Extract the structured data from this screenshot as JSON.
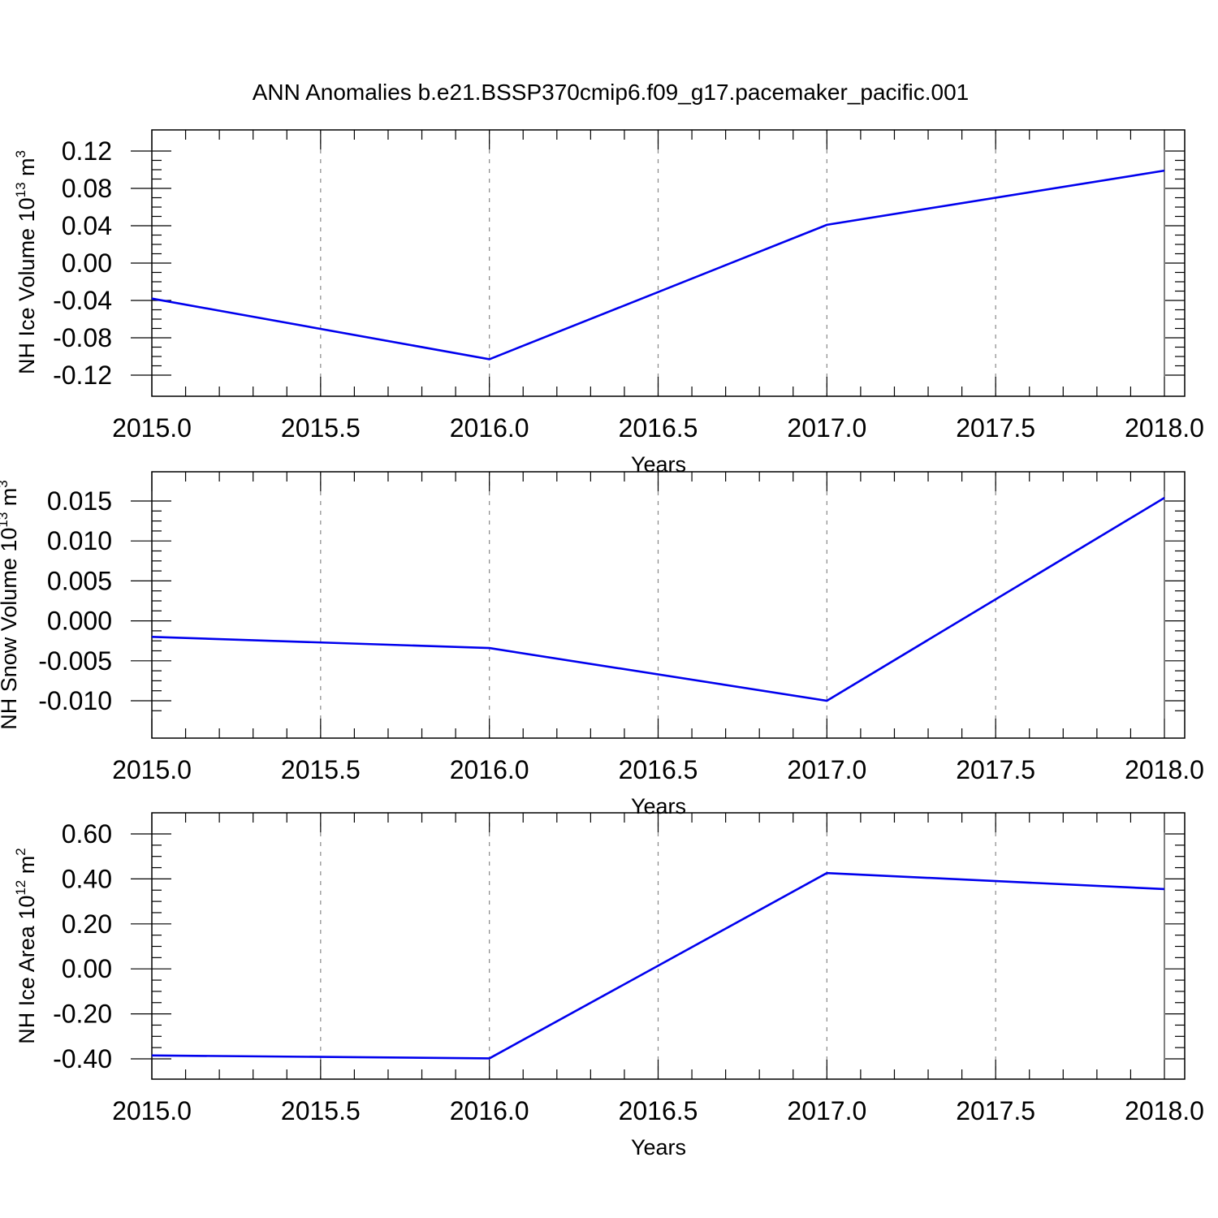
{
  "figure": {
    "title": "ANN Anomalies b.e21.BSSP370cmip6.f09_g17.pacemaker_pacific.001"
  },
  "colors": {
    "series_line": "#0000ee",
    "frame": "#000000",
    "gridline": "#888888",
    "background": "#ffffff"
  },
  "chart_data": [
    {
      "type": "line",
      "ylabel": {
        "prefix": "NH Ice Volume 10",
        "exponent": "13",
        "unit": " m",
        "unit_exponent": "3"
      },
      "xlabel": "Years",
      "xlim": [
        2015.0,
        2018.0
      ],
      "ylim": [
        -0.12,
        0.12
      ],
      "xticks": [
        2015.0,
        2015.5,
        2016.0,
        2016.5,
        2017.0,
        2017.5,
        2018.0
      ],
      "xtick_labels": [
        "2015.0",
        "2015.5",
        "2016.0",
        "2016.5",
        "2017.0",
        "2017.5",
        "2018.0"
      ],
      "yticks": [
        -0.12,
        -0.08,
        -0.04,
        0.0,
        0.04,
        0.08,
        0.12
      ],
      "ytick_labels": [
        "-0.12",
        "-0.08",
        "-0.04",
        "0.00",
        "0.04",
        "0.08",
        "0.12"
      ],
      "ytop_frame": 0.12,
      "ybottom_frame": -0.12,
      "grid": "vertical dashed",
      "series": [
        {
          "x": [
            2015.0,
            2016.0,
            2017.0,
            2018.0
          ],
          "values": [
            -0.038,
            -0.103,
            0.041,
            0.099
          ]
        }
      ]
    },
    {
      "type": "line",
      "ylabel": {
        "prefix": "NH Snow Volume 10",
        "exponent": "13",
        "unit": " m",
        "unit_exponent": "3"
      },
      "xlabel": "Years",
      "xlim": [
        2015.0,
        2018.0
      ],
      "ylim": [
        -0.012,
        0.016
      ],
      "xticks": [
        2015.0,
        2015.5,
        2016.0,
        2016.5,
        2017.0,
        2017.5,
        2018.0
      ],
      "xtick_labels": [
        "2015.0",
        "2015.5",
        "2016.0",
        "2016.5",
        "2017.0",
        "2017.5",
        "2018.0"
      ],
      "yticks": [
        -0.01,
        -0.005,
        0.0,
        0.005,
        0.01,
        0.015
      ],
      "ytick_labels": [
        "-0.010",
        "-0.005",
        "0.000",
        "0.005",
        "0.010",
        "0.015"
      ],
      "grid": "vertical dashed",
      "series": [
        {
          "x": [
            2015.0,
            2016.0,
            2017.0,
            2018.0
          ],
          "values": [
            -0.002,
            -0.0034,
            -0.01,
            0.0154
          ]
        }
      ]
    },
    {
      "type": "line",
      "ylabel": {
        "prefix": "NH Ice Area 10",
        "exponent": "12",
        "unit": " m",
        "unit_exponent": "2"
      },
      "xlabel": "Years",
      "xlim": [
        2015.0,
        2018.0
      ],
      "ylim": [
        -0.4,
        0.6
      ],
      "xticks": [
        2015.0,
        2015.5,
        2016.0,
        2016.5,
        2017.0,
        2017.5,
        2018.0
      ],
      "xtick_labels": [
        "2015.0",
        "2015.5",
        "2016.0",
        "2016.5",
        "2017.0",
        "2017.5",
        "2018.0"
      ],
      "yticks": [
        -0.4,
        -0.2,
        0.0,
        0.2,
        0.4,
        0.6
      ],
      "ytick_labels": [
        "-0.40",
        "-0.20",
        "0.00",
        "0.20",
        "0.40",
        "0.60"
      ],
      "grid": "vertical dashed",
      "series": [
        {
          "x": [
            2015.0,
            2016.0,
            2017.0,
            2018.0
          ],
          "values": [
            -0.385,
            -0.398,
            0.426,
            0.355
          ]
        }
      ]
    }
  ]
}
